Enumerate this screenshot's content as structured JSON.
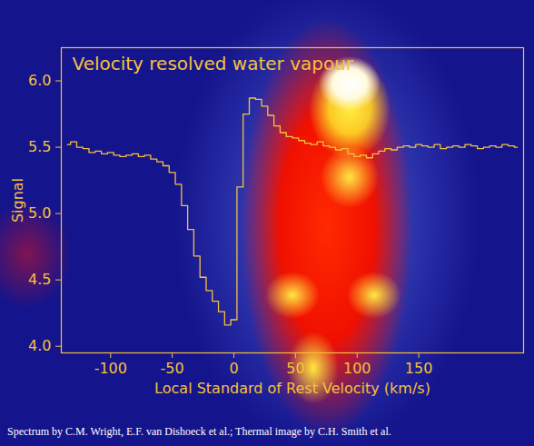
{
  "chart_data": {
    "type": "line",
    "title": "Velocity resolved water vapour",
    "x_label": "Local Standard of Rest Velocity (km/s)",
    "y_label": "Signal",
    "caption": "Spectrum by C.M. Wright, E.F. van Dishoeck et al.; Thermal image by C.H. Smith et al.",
    "color": "#f5c23a",
    "line_style": "step",
    "x": [
      -135,
      -130,
      -125,
      -120,
      -115,
      -110,
      -105,
      -100,
      -95,
      -90,
      -85,
      -80,
      -75,
      -70,
      -65,
      -60,
      -55,
      -50,
      -45,
      -40,
      -35,
      -30,
      -25,
      -20,
      -15,
      -10,
      -5,
      0,
      5,
      10,
      15,
      20,
      25,
      30,
      35,
      40,
      45,
      50,
      55,
      60,
      65,
      70,
      75,
      80,
      85,
      90,
      95,
      100,
      105,
      110,
      115,
      120,
      125,
      130,
      135,
      140,
      145,
      150,
      155,
      160,
      165,
      170,
      175,
      180,
      185,
      190,
      195,
      200,
      205,
      210,
      215,
      220,
      225,
      230
    ],
    "values": [
      5.52,
      5.54,
      5.5,
      5.49,
      5.46,
      5.47,
      5.45,
      5.46,
      5.44,
      5.43,
      5.44,
      5.45,
      5.43,
      5.44,
      5.41,
      5.39,
      5.36,
      5.31,
      5.22,
      5.06,
      4.88,
      4.68,
      4.52,
      4.42,
      4.34,
      4.26,
      4.16,
      4.2,
      5.2,
      5.75,
      5.87,
      5.86,
      5.81,
      5.74,
      5.66,
      5.61,
      5.58,
      5.57,
      5.55,
      5.53,
      5.52,
      5.54,
      5.51,
      5.5,
      5.48,
      5.49,
      5.45,
      5.43,
      5.44,
      5.42,
      5.45,
      5.47,
      5.49,
      5.48,
      5.5,
      5.51,
      5.5,
      5.52,
      5.51,
      5.5,
      5.52,
      5.49,
      5.5,
      5.51,
      5.5,
      5.52,
      5.51,
      5.49,
      5.5,
      5.51,
      5.5,
      5.52,
      5.51,
      5.5
    ],
    "xlim": [
      -140,
      235
    ],
    "ylim": [
      3.95,
      6.25
    ],
    "xticks": [
      -100,
      -50,
      0,
      50,
      100,
      150
    ],
    "yticks": [
      {
        "value": 4,
        "label": "4.0"
      },
      {
        "value": 4.5,
        "label": "4.5"
      },
      {
        "value": 5,
        "label": "5.0"
      },
      {
        "value": 5.5,
        "label": "5.5"
      },
      {
        "value": 6,
        "label": "6.0"
      }
    ]
  }
}
